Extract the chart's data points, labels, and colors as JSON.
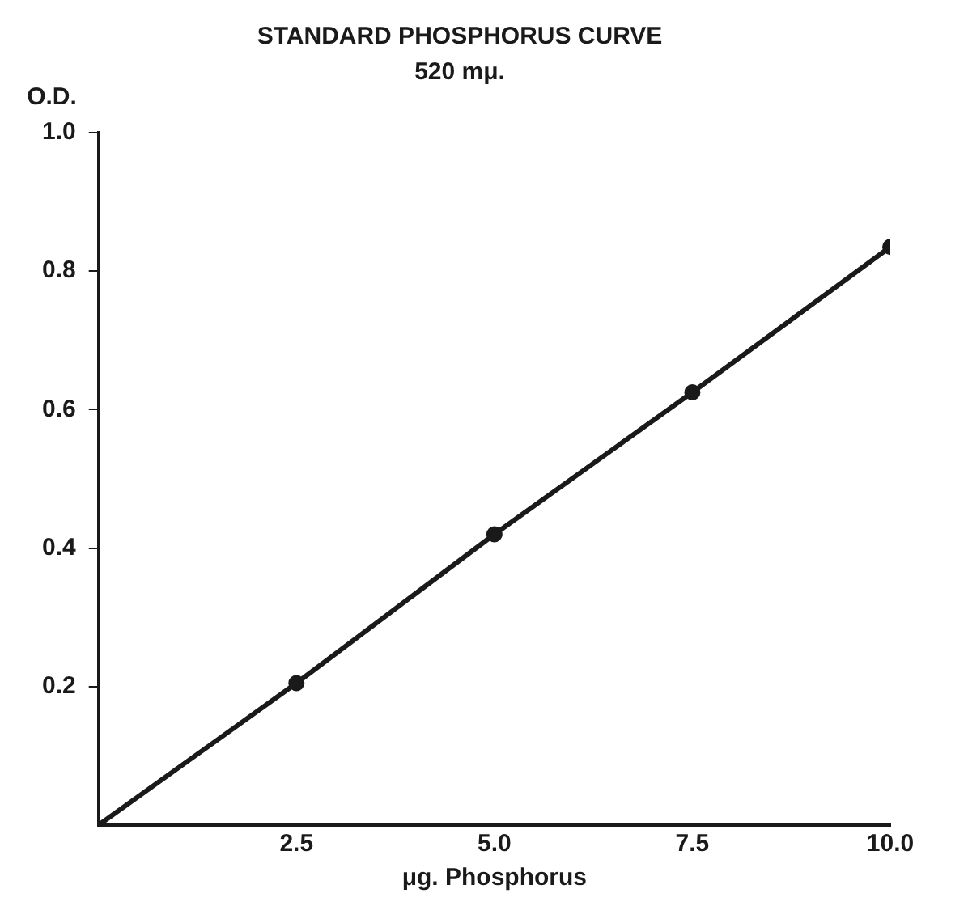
{
  "chart_data": {
    "type": "line",
    "title": "STANDARD PHOSPHORUS CURVE",
    "subtitle": "520 mμ.",
    "xlabel": "μg. Phosphorus",
    "ylabel": "O.D.",
    "series": [
      {
        "type": "line",
        "color": "#1a1a1a",
        "marker": "none",
        "x": [
          0,
          2.5,
          5,
          7.5,
          10
        ],
        "values": [
          0,
          0.205,
          0.42,
          0.625,
          0.835
        ]
      },
      {
        "type": "scatter",
        "color": "#1a1a1a",
        "marker": "circle",
        "x": [
          2.5,
          5,
          7.5,
          10
        ],
        "values": [
          0.205,
          0.42,
          0.625,
          0.835
        ]
      }
    ],
    "xlim": [
      0,
      10
    ],
    "ylim": [
      0,
      1
    ],
    "xticks": [
      2.5,
      {
        "value": 5,
        "label": "5.0"
      },
      7.5,
      {
        "value": 10,
        "label": "10.0"
      }
    ],
    "yticks": [
      0.2,
      0.4,
      0.6,
      0.8,
      {
        "value": 1,
        "label": "1.0"
      }
    ],
    "grid": false,
    "legend": false
  }
}
